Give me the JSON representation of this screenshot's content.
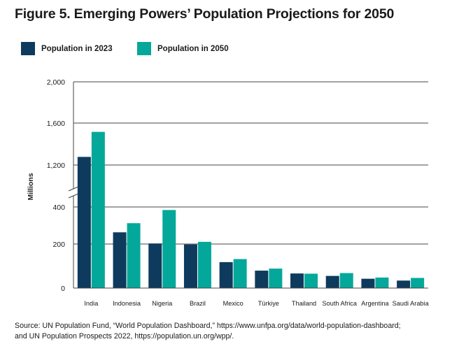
{
  "title": "Figure 5. Emerging Powers’ Population Projections for 2050",
  "source_lines": [
    "Source: UN Population Fund, “World Population Dashboard,” https://www.unfpa.org/data/world-population-dashboard;",
    "and UN Population Prospects 2022,  https://population.un.org/wpp/."
  ],
  "colors": {
    "series_2023": "#0e3a5e",
    "series_2050": "#04a89a",
    "grid": "#444444",
    "axis": "#444444"
  },
  "chart_data": {
    "type": "bar",
    "title": "Figure 5. Emerging Powers’ Population Projections for 2050",
    "xlabel": "",
    "ylabel": "Millions",
    "broken_axis": true,
    "grid": true,
    "legend_position": "top-left",
    "categories": [
      "India",
      "Indonesia",
      "Nigeria",
      "Brazil",
      "Mexico",
      "Türkiye",
      "Thailand",
      "South Africa",
      "Argentina",
      "Saudi Arabia"
    ],
    "series": [
      {
        "name": "Population in 2023",
        "values": [
          1400,
          275,
          220,
          215,
          128,
          86,
          72,
          60,
          46,
          37
        ]
      },
      {
        "name": "Population in 2050",
        "values": [
          1600,
          320,
          385,
          228,
          143,
          96,
          71,
          74,
          52,
          50
        ]
      }
    ],
    "ytick_labels": [
      "0",
      "200",
      "400",
      "1,200",
      "1,600",
      "2,000"
    ],
    "ytick_values": [
      0,
      200,
      400,
      1200,
      1600,
      2000
    ]
  }
}
